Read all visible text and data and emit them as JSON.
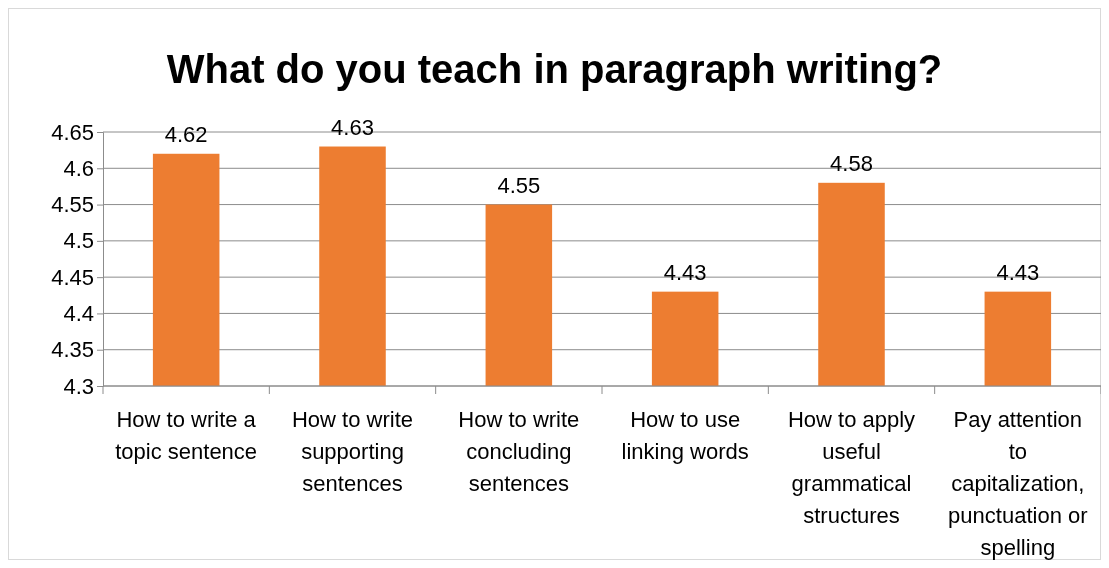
{
  "chart_data": {
    "type": "bar",
    "title": "What do you teach in paragraph writing?",
    "categories": [
      "How to write a topic sentence",
      "How to write supporting sentences",
      "How to write concluding sentences",
      "How to use linking words",
      "How to apply useful grammatical structures",
      "Pay attention to capitalization, punctuation or spelling"
    ],
    "values": [
      4.62,
      4.63,
      4.55,
      4.43,
      4.58,
      4.43
    ],
    "color": "#ed7d31",
    "ylim": [
      4.3,
      4.65
    ],
    "yticks": [
      4.3,
      4.35,
      4.4,
      4.45,
      4.5,
      4.55,
      4.6,
      4.65
    ],
    "grid": "y",
    "data_labels": true
  }
}
